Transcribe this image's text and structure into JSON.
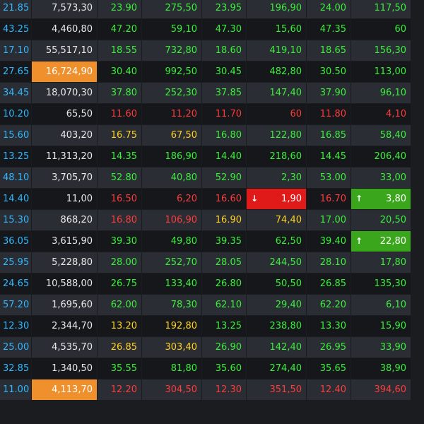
{
  "colors": {
    "ref": "#2fb8ff",
    "up": "#39f039",
    "down": "#ff3b3b",
    "ceiling_floor_near": "#ffd21f",
    "orange_highlight": "#f0902d",
    "red_highlight": "#e01919",
    "green_highlight": "#3aa61b"
  },
  "rows": [
    {
      "cells": [
        {
          "v": "21.85",
          "c": "ref"
        },
        {
          "v": "7,573,30",
          "c": "qty"
        },
        {
          "v": "23.90",
          "c": "green"
        },
        {
          "v": "275,50",
          "c": "green"
        },
        {
          "v": "23.95",
          "c": "green"
        },
        {
          "v": "196,90",
          "c": "green"
        },
        {
          "v": "24.00",
          "c": "green"
        },
        {
          "v": "117,50",
          "c": "green"
        }
      ]
    },
    {
      "cells": [
        {
          "v": "43.25",
          "c": "ref"
        },
        {
          "v": "4,460,80",
          "c": "qty"
        },
        {
          "v": "47.20",
          "c": "green"
        },
        {
          "v": "59,10",
          "c": "green"
        },
        {
          "v": "47.30",
          "c": "green"
        },
        {
          "v": "15,60",
          "c": "green"
        },
        {
          "v": "47.35",
          "c": "green"
        },
        {
          "v": "60",
          "c": "green"
        }
      ]
    },
    {
      "cells": [
        {
          "v": "17.10",
          "c": "ref"
        },
        {
          "v": "55,517,10",
          "c": "qty"
        },
        {
          "v": "18.55",
          "c": "green"
        },
        {
          "v": "732,80",
          "c": "green"
        },
        {
          "v": "18.60",
          "c": "green"
        },
        {
          "v": "419,10",
          "c": "green"
        },
        {
          "v": "18.65",
          "c": "green"
        },
        {
          "v": "156,30",
          "c": "green"
        }
      ]
    },
    {
      "cells": [
        {
          "v": "27.65",
          "c": "ref"
        },
        {
          "v": "16,724,90",
          "c": "orange"
        },
        {
          "v": "30.40",
          "c": "green"
        },
        {
          "v": "992,50",
          "c": "green"
        },
        {
          "v": "30.45",
          "c": "green"
        },
        {
          "v": "482,80",
          "c": "green"
        },
        {
          "v": "30.50",
          "c": "green"
        },
        {
          "v": "113,00",
          "c": "green"
        }
      ]
    },
    {
      "cells": [
        {
          "v": "34.45",
          "c": "ref"
        },
        {
          "v": "18,070,30",
          "c": "qty"
        },
        {
          "v": "37.80",
          "c": "green"
        },
        {
          "v": "252,30",
          "c": "green"
        },
        {
          "v": "37.85",
          "c": "green"
        },
        {
          "v": "147,40",
          "c": "green"
        },
        {
          "v": "37.90",
          "c": "green"
        },
        {
          "v": "96,10",
          "c": "green"
        }
      ]
    },
    {
      "cells": [
        {
          "v": "10.20",
          "c": "ref"
        },
        {
          "v": "65,50",
          "c": "qty"
        },
        {
          "v": "11.60",
          "c": "red"
        },
        {
          "v": "11,20",
          "c": "red"
        },
        {
          "v": "11.70",
          "c": "red"
        },
        {
          "v": "60",
          "c": "red"
        },
        {
          "v": "11.80",
          "c": "red"
        },
        {
          "v": "4,10",
          "c": "red"
        }
      ]
    },
    {
      "cells": [
        {
          "v": "15.60",
          "c": "ref"
        },
        {
          "v": "403,20",
          "c": "qty"
        },
        {
          "v": "16.75",
          "c": "yellow"
        },
        {
          "v": "67,50",
          "c": "yellow"
        },
        {
          "v": "16.80",
          "c": "green"
        },
        {
          "v": "122,80",
          "c": "green"
        },
        {
          "v": "16.85",
          "c": "green"
        },
        {
          "v": "58,40",
          "c": "green"
        }
      ]
    },
    {
      "cells": [
        {
          "v": "13.25",
          "c": "ref"
        },
        {
          "v": "11,313,20",
          "c": "qty"
        },
        {
          "v": "14.35",
          "c": "green"
        },
        {
          "v": "186,90",
          "c": "green"
        },
        {
          "v": "14.40",
          "c": "green"
        },
        {
          "v": "218,60",
          "c": "green"
        },
        {
          "v": "14.45",
          "c": "green"
        },
        {
          "v": "206,40",
          "c": "green"
        }
      ]
    },
    {
      "cells": [
        {
          "v": "48.10",
          "c": "ref"
        },
        {
          "v": "3,705,70",
          "c": "qty"
        },
        {
          "v": "52.80",
          "c": "green"
        },
        {
          "v": "40,80",
          "c": "green"
        },
        {
          "v": "52.90",
          "c": "green"
        },
        {
          "v": "2,30",
          "c": "green"
        },
        {
          "v": "53.00",
          "c": "green"
        },
        {
          "v": "33,00",
          "c": "green"
        }
      ]
    },
    {
      "cells": [
        {
          "v": "14.40",
          "c": "ref"
        },
        {
          "v": "11,00",
          "c": "qty"
        },
        {
          "v": "16.50",
          "c": "red"
        },
        {
          "v": "6,20",
          "c": "red"
        },
        {
          "v": "16.60",
          "c": "red"
        },
        {
          "v": "1,90",
          "c": "hl-red",
          "arrow": "↓"
        },
        {
          "v": "16.70",
          "c": "red"
        },
        {
          "v": "3,80",
          "c": "hl-green",
          "arrow": "↑"
        }
      ]
    },
    {
      "cells": [
        {
          "v": "15.30",
          "c": "ref"
        },
        {
          "v": "868,20",
          "c": "qty"
        },
        {
          "v": "16.80",
          "c": "red"
        },
        {
          "v": "106,90",
          "c": "red"
        },
        {
          "v": "16.90",
          "c": "yellow"
        },
        {
          "v": "74,40",
          "c": "yellow"
        },
        {
          "v": "17.00",
          "c": "green"
        },
        {
          "v": "20,50",
          "c": "green"
        }
      ]
    },
    {
      "cells": [
        {
          "v": "36.05",
          "c": "ref"
        },
        {
          "v": "3,615,90",
          "c": "qty"
        },
        {
          "v": "39.30",
          "c": "green"
        },
        {
          "v": "49,80",
          "c": "green"
        },
        {
          "v": "39.35",
          "c": "green"
        },
        {
          "v": "62,50",
          "c": "green"
        },
        {
          "v": "39.40",
          "c": "green"
        },
        {
          "v": "22,80",
          "c": "hl-green",
          "arrow": "↑"
        }
      ]
    },
    {
      "cells": [
        {
          "v": "25.95",
          "c": "ref"
        },
        {
          "v": "5,228,80",
          "c": "qty"
        },
        {
          "v": "28.00",
          "c": "green"
        },
        {
          "v": "252,70",
          "c": "green"
        },
        {
          "v": "28.05",
          "c": "green"
        },
        {
          "v": "244,50",
          "c": "green"
        },
        {
          "v": "28.10",
          "c": "green"
        },
        {
          "v": "17,80",
          "c": "green"
        }
      ]
    },
    {
      "cells": [
        {
          "v": "24.65",
          "c": "ref"
        },
        {
          "v": "10,588,00",
          "c": "qty"
        },
        {
          "v": "26.75",
          "c": "green"
        },
        {
          "v": "133,40",
          "c": "green"
        },
        {
          "v": "26.80",
          "c": "green"
        },
        {
          "v": "50,50",
          "c": "green"
        },
        {
          "v": "26.85",
          "c": "green"
        },
        {
          "v": "135,30",
          "c": "green"
        }
      ]
    },
    {
      "cells": [
        {
          "v": "57.20",
          "c": "ref"
        },
        {
          "v": "1,695,60",
          "c": "qty"
        },
        {
          "v": "62.00",
          "c": "green"
        },
        {
          "v": "78,30",
          "c": "green"
        },
        {
          "v": "62.10",
          "c": "green"
        },
        {
          "v": "29,40",
          "c": "green"
        },
        {
          "v": "62.20",
          "c": "green"
        },
        {
          "v": "6,10",
          "c": "green"
        }
      ]
    },
    {
      "cells": [
        {
          "v": "12.30",
          "c": "ref"
        },
        {
          "v": "2,344,70",
          "c": "qty"
        },
        {
          "v": "13.20",
          "c": "yellow"
        },
        {
          "v": "192,80",
          "c": "yellow"
        },
        {
          "v": "13.25",
          "c": "green"
        },
        {
          "v": "238,80",
          "c": "green"
        },
        {
          "v": "13.30",
          "c": "green"
        },
        {
          "v": "15,90",
          "c": "green"
        }
      ]
    },
    {
      "cells": [
        {
          "v": "25.00",
          "c": "ref"
        },
        {
          "v": "4,535,70",
          "c": "qty"
        },
        {
          "v": "26.85",
          "c": "yellow"
        },
        {
          "v": "303,40",
          "c": "yellow"
        },
        {
          "v": "26.90",
          "c": "green"
        },
        {
          "v": "142,40",
          "c": "green"
        },
        {
          "v": "26.95",
          "c": "green"
        },
        {
          "v": "33,90",
          "c": "green"
        }
      ]
    },
    {
      "cells": [
        {
          "v": "32.85",
          "c": "ref"
        },
        {
          "v": "1,340,50",
          "c": "qty"
        },
        {
          "v": "35.55",
          "c": "green"
        },
        {
          "v": "81,80",
          "c": "green"
        },
        {
          "v": "35.60",
          "c": "green"
        },
        {
          "v": "274,40",
          "c": "green"
        },
        {
          "v": "35.65",
          "c": "green"
        },
        {
          "v": "38,90",
          "c": "green"
        }
      ]
    },
    {
      "cells": [
        {
          "v": "11.00",
          "c": "ref"
        },
        {
          "v": "4,113,70",
          "c": "orange"
        },
        {
          "v": "12.20",
          "c": "red"
        },
        {
          "v": "304,50",
          "c": "red"
        },
        {
          "v": "12.30",
          "c": "red"
        },
        {
          "v": "351,50",
          "c": "red"
        },
        {
          "v": "12.40",
          "c": "red"
        },
        {
          "v": "394,60",
          "c": "red"
        }
      ]
    }
  ]
}
